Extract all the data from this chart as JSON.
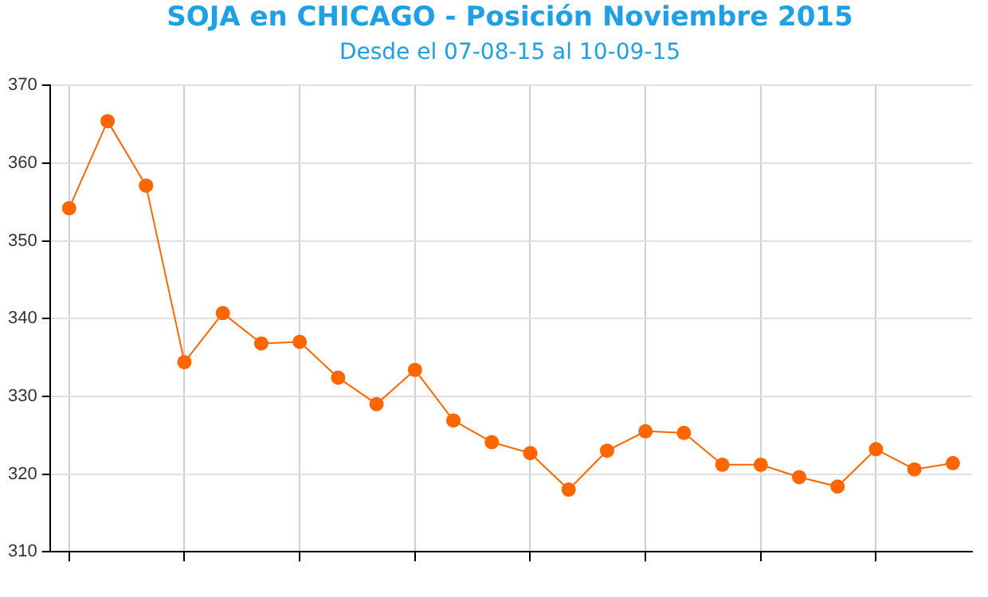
{
  "chart_data": {
    "type": "line",
    "title": "SOJA en CHICAGO - Posición Noviembre 2015",
    "subtitle": "Desde el 07-08-15 al 10-09-15",
    "categories": [
      null,
      null,
      null,
      null,
      null,
      null,
      null,
      null,
      null,
      null,
      null,
      null,
      null,
      null,
      null,
      null,
      null,
      null,
      null,
      null,
      null,
      null,
      null,
      null
    ],
    "series": [
      {
        "color": "#ff6600",
        "values": [
          354.2,
          365.4,
          357.1,
          334.4,
          340.7,
          336.8,
          337.0,
          332.4,
          329.0,
          333.4,
          326.9,
          324.1,
          322.7,
          318.0,
          323.0,
          325.5,
          325.3,
          321.2,
          321.2,
          319.6,
          318.4,
          323.2,
          320.6,
          321.4
        ]
      }
    ],
    "ylim": [
      310,
      370
    ],
    "yticks": [
      310,
      320,
      330,
      340,
      350,
      360,
      370
    ],
    "grid": true,
    "marker": "circle",
    "line_style": "solid"
  }
}
